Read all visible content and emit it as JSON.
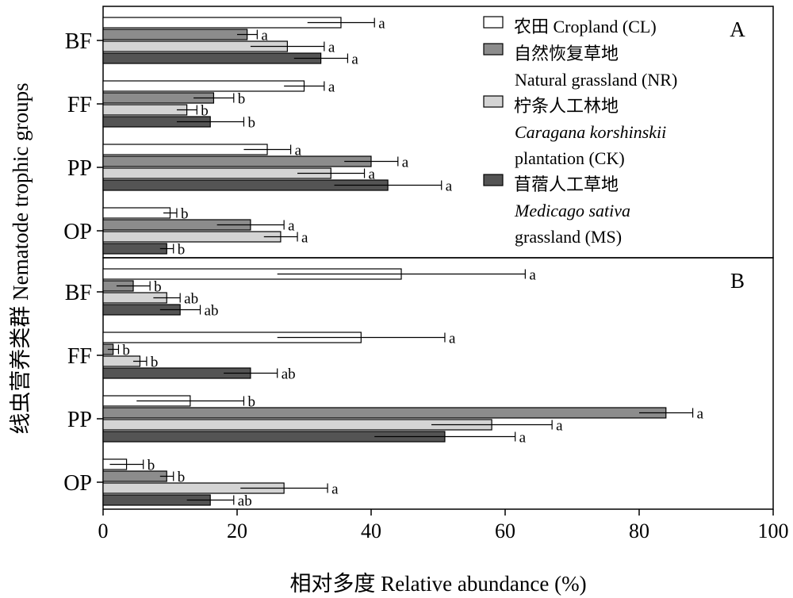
{
  "chart_data": {
    "type": "bar",
    "orientation": "horizontal",
    "xlabel": "相对多度 Relative abundance (%)",
    "ylabel": "线虫营养类群 Nematode trophic groups",
    "xlim": [
      0,
      100
    ],
    "xticks": [
      0,
      20,
      40,
      60,
      80,
      100
    ],
    "categories": [
      "BF",
      "FF",
      "PP",
      "OP"
    ],
    "legend": {
      "placement": "top-right",
      "entries": [
        {
          "key": "CL",
          "color": "#ffffff",
          "lines": [
            {
              "text": "农田 Cropland (CL)",
              "italic": false
            }
          ]
        },
        {
          "key": "NR",
          "color": "#8c8c8c",
          "lines": [
            {
              "text": "自然恢复草地",
              "italic": false
            },
            {
              "text": "Natural grassland (NR)",
              "italic": false
            }
          ]
        },
        {
          "key": "CK",
          "color": "#d4d4d4",
          "lines": [
            {
              "text": "柠条人工林地",
              "italic": false
            },
            {
              "text": "Caragana korshinskii",
              "italic": true
            },
            {
              "text": "plantation (CK)",
              "italic": false
            }
          ]
        },
        {
          "key": "MS",
          "color": "#545454",
          "lines": [
            {
              "text": "苜蓿人工草地",
              "italic": false
            },
            {
              "text": "Medicago sativa",
              "italic": true
            },
            {
              "text": "grassland (MS)",
              "italic": false
            }
          ]
        }
      ]
    },
    "panels": [
      {
        "label": "A",
        "series": [
          {
            "key": "CL",
            "values": [
              35.5,
              30,
              24.5,
              10
            ],
            "errors": [
              5,
              3,
              3.5,
              1
            ],
            "letters": [
              "a",
              "a",
              "a",
              "b"
            ]
          },
          {
            "key": "NR",
            "values": [
              21.5,
              16.5,
              40,
              22
            ],
            "errors": [
              1.5,
              3,
              4,
              5
            ],
            "letters": [
              "a",
              "b",
              "a",
              "a"
            ]
          },
          {
            "key": "CK",
            "values": [
              27.5,
              12.5,
              34,
              26.5
            ],
            "errors": [
              5.5,
              1.5,
              5,
              2.5
            ],
            "letters": [
              "a",
              "b",
              "a",
              "a"
            ]
          },
          {
            "key": "MS",
            "values": [
              32.5,
              16,
              42.5,
              9.5
            ],
            "errors": [
              4,
              5,
              8,
              1
            ],
            "letters": [
              "a",
              "b",
              "a",
              "b"
            ]
          }
        ]
      },
      {
        "label": "B",
        "series": [
          {
            "key": "CL",
            "values": [
              44.5,
              38.5,
              13,
              3.5
            ],
            "errors": [
              18.5,
              12.5,
              8,
              2.5
            ],
            "letters": [
              "a",
              "a",
              "b",
              "b"
            ]
          },
          {
            "key": "NR",
            "values": [
              4.5,
              1.5,
              84,
              9.5
            ],
            "errors": [
              2.5,
              0.8,
              4,
              1
            ],
            "letters": [
              "b",
              "b",
              "a",
              "b"
            ]
          },
          {
            "key": "CK",
            "values": [
              9.5,
              5.5,
              58,
              27
            ],
            "errors": [
              2,
              1,
              9,
              6.5
            ],
            "letters": [
              "ab",
              "b",
              "a",
              "a"
            ]
          },
          {
            "key": "MS",
            "values": [
              11.5,
              22,
              51,
              16
            ],
            "errors": [
              3,
              4,
              10.5,
              3.5
            ],
            "letters": [
              "ab",
              "ab",
              "a",
              "ab"
            ]
          }
        ]
      }
    ]
  }
}
